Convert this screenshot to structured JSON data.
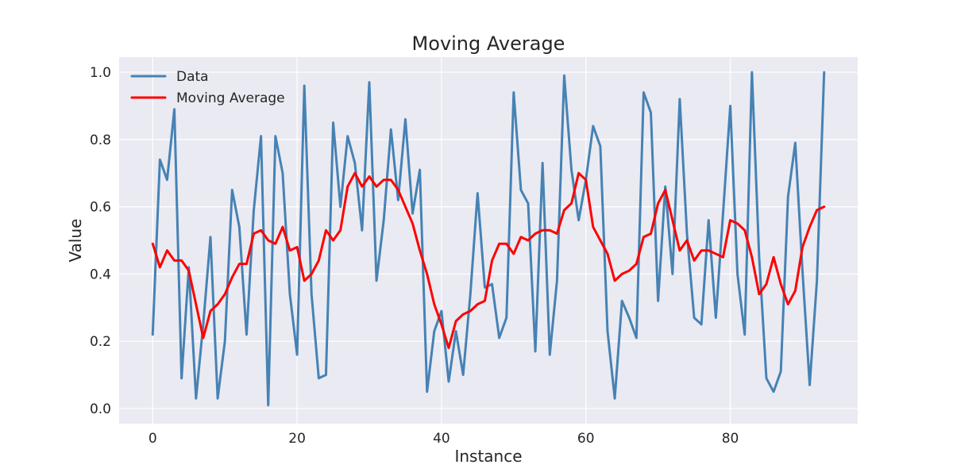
{
  "chart_data": {
    "type": "line",
    "title": "Moving Average",
    "xlabel": "Instance",
    "ylabel": "Value",
    "xlim": [
      -4.65,
      97.65
    ],
    "ylim": [
      -0.045,
      1.045
    ],
    "xticks": [
      0,
      20,
      40,
      60,
      80
    ],
    "xtick_labels": [
      "0",
      "20",
      "40",
      "60",
      "80"
    ],
    "yticks": [
      0.0,
      0.2,
      0.4,
      0.6,
      0.8,
      1.0
    ],
    "ytick_labels": [
      "0.0",
      "0.2",
      "0.4",
      "0.6",
      "0.8",
      "1.0"
    ],
    "grid": true,
    "legend_position": "top-left",
    "series": [
      {
        "name": "Data",
        "color": "#4682b4",
        "values": [
          0.22,
          0.74,
          0.68,
          0.89,
          0.09,
          0.42,
          0.03,
          0.25,
          0.51,
          0.03,
          0.2,
          0.65,
          0.54,
          0.22,
          0.59,
          0.81,
          0.01,
          0.81,
          0.7,
          0.34,
          0.16,
          0.96,
          0.34,
          0.09,
          0.1,
          0.85,
          0.6,
          0.81,
          0.73,
          0.53,
          0.97,
          0.38,
          0.56,
          0.83,
          0.62,
          0.86,
          0.58,
          0.71,
          0.05,
          0.23,
          0.29,
          0.08,
          0.23,
          0.1,
          0.34,
          0.64,
          0.36,
          0.37,
          0.21,
          0.27,
          0.94,
          0.65,
          0.61,
          0.17,
          0.73,
          0.16,
          0.38,
          0.99,
          0.71,
          0.56,
          0.68,
          0.84,
          0.78,
          0.23,
          0.03,
          0.32,
          0.27,
          0.21,
          0.94,
          0.88,
          0.32,
          0.66,
          0.4,
          0.92,
          0.52,
          0.27,
          0.25,
          0.56,
          0.27,
          0.58,
          0.9,
          0.4,
          0.22,
          1.0,
          0.45,
          0.09,
          0.05,
          0.11,
          0.63,
          0.79,
          0.41,
          0.07,
          0.38,
          1.0
        ]
      },
      {
        "name": "Moving Average",
        "color": "#ff0000",
        "values": [
          0.49,
          0.42,
          0.47,
          0.44,
          0.44,
          0.41,
          0.31,
          0.21,
          0.29,
          0.31,
          0.34,
          0.39,
          0.43,
          0.43,
          0.52,
          0.53,
          0.5,
          0.49,
          0.54,
          0.47,
          0.48,
          0.38,
          0.4,
          0.44,
          0.53,
          0.5,
          0.53,
          0.66,
          0.7,
          0.66,
          0.69,
          0.66,
          0.68,
          0.68,
          0.65,
          0.6,
          0.55,
          0.47,
          0.4,
          0.31,
          0.25,
          0.18,
          0.26,
          0.28,
          0.29,
          0.31,
          0.32,
          0.44,
          0.49,
          0.49,
          0.46,
          0.51,
          0.5,
          0.52,
          0.53,
          0.53,
          0.52,
          0.59,
          0.61,
          0.7,
          0.68,
          0.54,
          0.5,
          0.46,
          0.38,
          0.4,
          0.41,
          0.43,
          0.51,
          0.52,
          0.61,
          0.65,
          0.56,
          0.47,
          0.5,
          0.44,
          0.47,
          0.47,
          0.46,
          0.45,
          0.56,
          0.55,
          0.53,
          0.45,
          0.34,
          0.37,
          0.45,
          0.37,
          0.31,
          0.35,
          0.48,
          0.54,
          0.59,
          0.6
        ]
      }
    ]
  }
}
